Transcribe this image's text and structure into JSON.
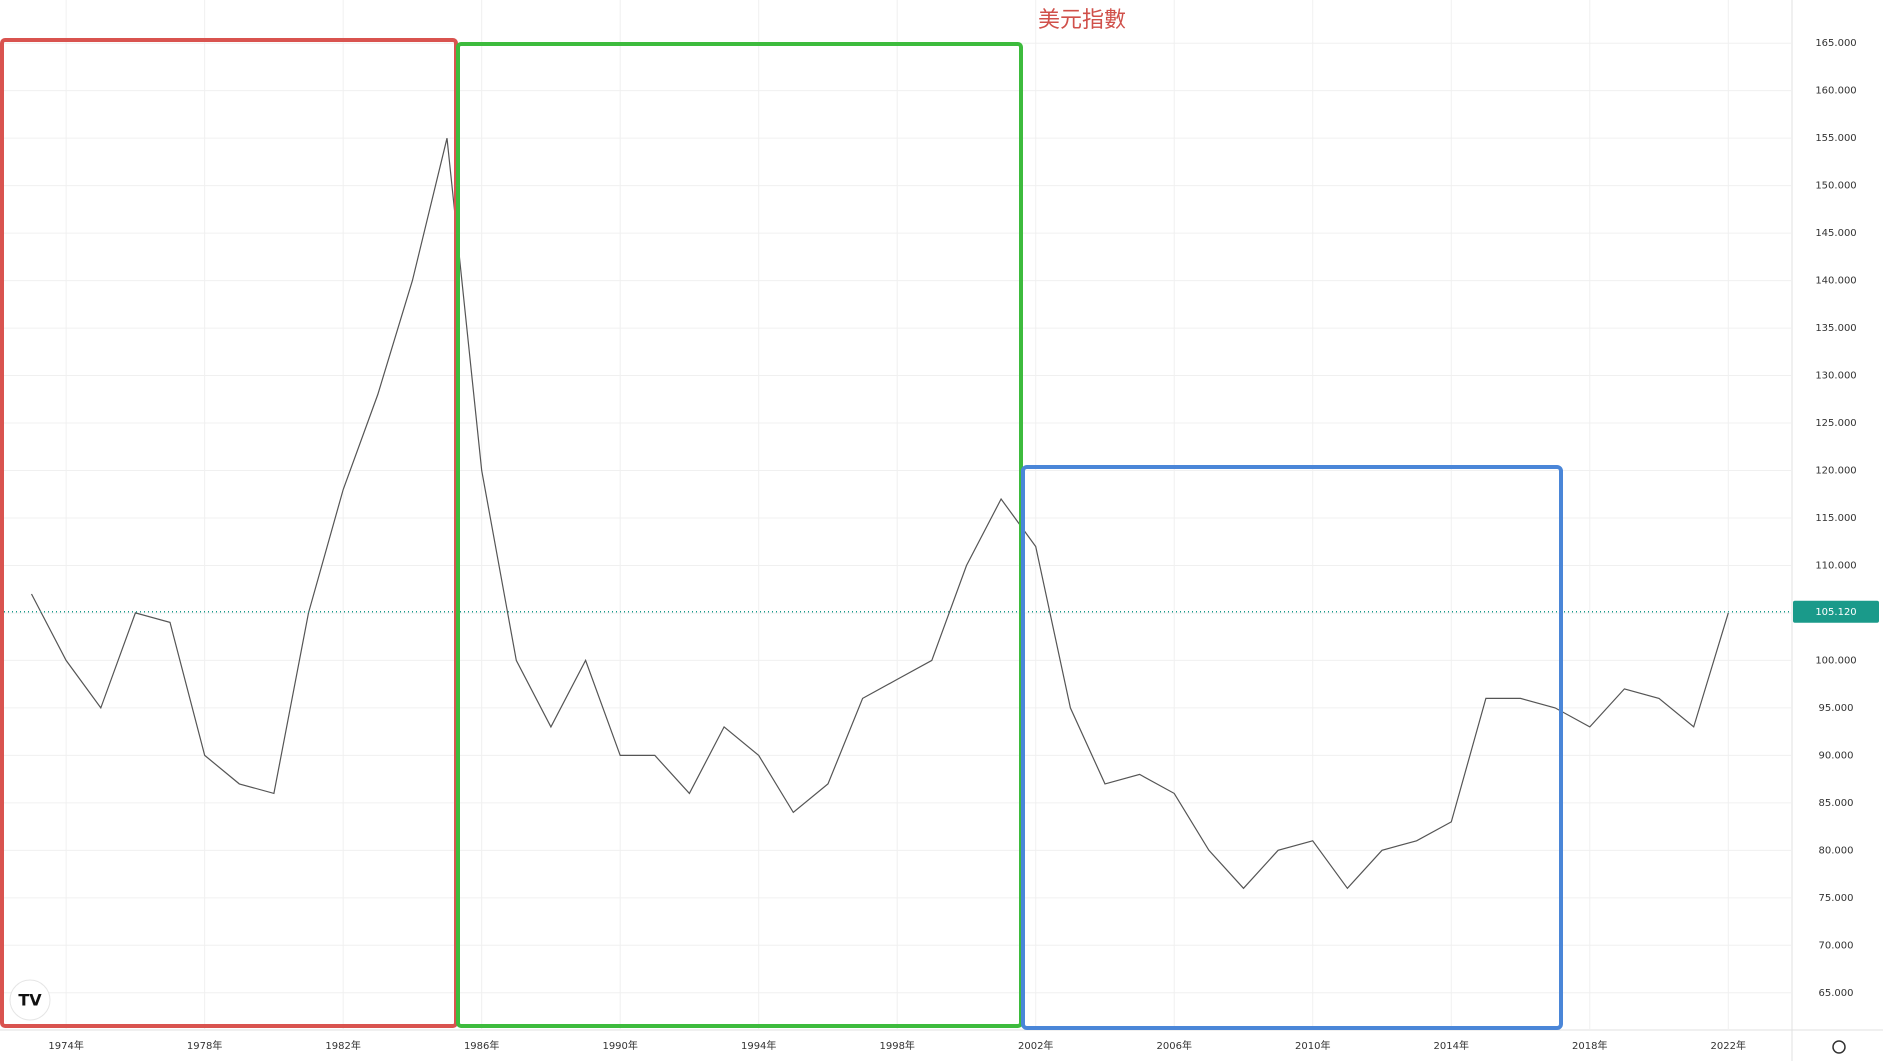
{
  "chart_data": {
    "type": "line",
    "title": "美元指數",
    "color": "#555555",
    "x": [
      1973,
      1974,
      1975,
      1976,
      1977,
      1978,
      1979,
      1980,
      1981,
      1982,
      1983,
      1984,
      1985,
      1986,
      1987,
      1988,
      1989,
      1990,
      1991,
      1992,
      1993,
      1994,
      1995,
      1996,
      1997,
      1998,
      1999,
      2000,
      2001,
      2002,
      2003,
      2004,
      2005,
      2006,
      2007,
      2008,
      2009,
      2010,
      2011,
      2012,
      2013,
      2014,
      2015,
      2016,
      2017,
      2018,
      2019,
      2020,
      2021,
      2022
    ],
    "values": [
      107,
      100,
      95,
      105,
      104,
      90,
      87,
      86,
      105,
      118,
      128,
      140,
      155,
      120,
      100,
      93,
      100,
      90,
      90,
      86,
      93,
      90,
      84,
      87,
      96,
      98,
      100,
      110,
      117,
      112,
      95,
      87,
      88,
      86,
      80,
      76,
      80,
      81,
      76,
      80,
      81,
      83,
      96,
      96,
      95,
      93,
      97,
      96,
      93,
      105
    ],
    "xlim": [
      1972.09,
      2023.84
    ],
    "xticks": [
      {
        "value": 1974,
        "label": "1974年"
      },
      {
        "value": 1978,
        "label": "1978年"
      },
      {
        "value": 1982,
        "label": "1982年"
      },
      {
        "value": 1986,
        "label": "1986年"
      },
      {
        "value": 1990,
        "label": "1990年"
      },
      {
        "value": 1994,
        "label": "1994年"
      },
      {
        "value": 1998,
        "label": "1998年"
      },
      {
        "value": 2002,
        "label": "2002年"
      },
      {
        "value": 2006,
        "label": "2006年"
      },
      {
        "value": 2010,
        "label": "2010年"
      },
      {
        "value": 2014,
        "label": "2014年"
      },
      {
        "value": 2018,
        "label": "2018年"
      },
      {
        "value": 2022,
        "label": "2022年"
      }
    ],
    "ylim": [
      61.08,
      169.55
    ],
    "yticks": [
      {
        "value": 65,
        "label": "65.000"
      },
      {
        "value": 70,
        "label": "70.000"
      },
      {
        "value": 75,
        "label": "75.000"
      },
      {
        "value": 80,
        "label": "80.000"
      },
      {
        "value": 85,
        "label": "85.000"
      },
      {
        "value": 90,
        "label": "90.000"
      },
      {
        "value": 95,
        "label": "95.000"
      },
      {
        "value": 100,
        "label": "100.000"
      },
      {
        "value": 105,
        "label": "105.000"
      },
      {
        "value": 110,
        "label": "110.000"
      },
      {
        "value": 115,
        "label": "115.000"
      },
      {
        "value": 120,
        "label": "120.000"
      },
      {
        "value": 125,
        "label": "125.000"
      },
      {
        "value": 130,
        "label": "130.000"
      },
      {
        "value": 135,
        "label": "135.000"
      },
      {
        "value": 140,
        "label": "140.000"
      },
      {
        "value": 145,
        "label": "145.000"
      },
      {
        "value": 150,
        "label": "150.000"
      },
      {
        "value": 155,
        "label": "155.000"
      },
      {
        "value": 160,
        "label": "160.000"
      },
      {
        "value": 165,
        "label": "165.000"
      }
    ],
    "current_price": {
      "value": 105.12,
      "label": "105.120"
    },
    "grid": true
  }
}
